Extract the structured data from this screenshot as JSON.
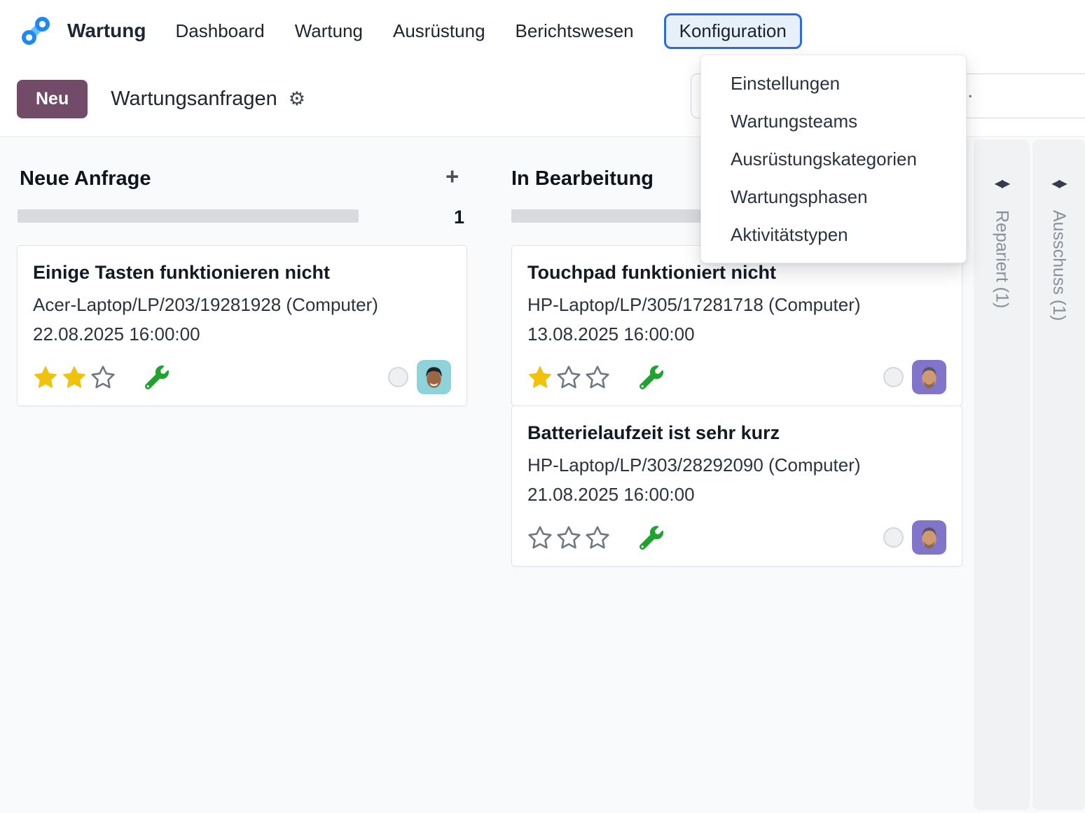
{
  "colors": {
    "brand_primary": "#714B67",
    "active_menu_border": "#2e6bd9",
    "active_menu_bg": "#e6f0f8",
    "star_gold": "#f0c20c",
    "wrench_green": "#1fa22e",
    "progressbar_gray": "#d9dadd",
    "content_bg": "#f9fafb"
  },
  "icons": {
    "logo": "odoo-maintenance-chain-link",
    "gear": "⚙",
    "plus": "+",
    "fold_toggle": "◀▶"
  },
  "navbar": {
    "app_name": "Wartung",
    "menu_items": [
      {
        "label": "Dashboard"
      },
      {
        "label": "Wartung"
      },
      {
        "label": "Ausrüstung"
      },
      {
        "label": "Berichtswesen"
      },
      {
        "label": "Konfiguration",
        "active": true
      }
    ]
  },
  "control_panel": {
    "new_button_label": "Neu",
    "title": "Wartungsanfragen",
    "search_visible_fragment": "."
  },
  "dropdown_menu": {
    "items": [
      {
        "label": "Einstellungen"
      },
      {
        "label": "Wartungsteams"
      },
      {
        "label": "Ausrüstungskategorien"
      },
      {
        "label": "Wartungsphasen"
      },
      {
        "label": "Aktivitätstypen"
      }
    ]
  },
  "kanban": {
    "columns": [
      {
        "title": "Neue Anfrage",
        "count": "1",
        "cards": [
          {
            "title": "Einige Tasten funktionieren nicht",
            "equipment": "Acer-Laptop/LP/203/19281928 (Computer)",
            "datetime": "22.08.2025 16:00:00",
            "stars": [
              "filled",
              "filled",
              "empty"
            ],
            "avatar": "man-teal"
          }
        ]
      },
      {
        "title": "In Bearbeitung",
        "cards": [
          {
            "title": "Touchpad funktioniert nicht",
            "equipment": "HP-Laptop/LP/305/17281718 (Computer)",
            "datetime": "13.08.2025 16:00:00",
            "stars": [
              "filled",
              "empty",
              "empty"
            ],
            "avatar": "man-purple"
          },
          {
            "title": "Batterielaufzeit ist sehr kurz",
            "equipment": "HP-Laptop/LP/303/28292090 (Computer)",
            "datetime": "21.08.2025 16:00:00",
            "stars": [
              "empty",
              "empty",
              "empty"
            ],
            "avatar": "man-purple"
          }
        ]
      }
    ],
    "folded_columns": [
      {
        "label": "Repariert (1)"
      },
      {
        "label": "Ausschuss (1)"
      }
    ]
  }
}
